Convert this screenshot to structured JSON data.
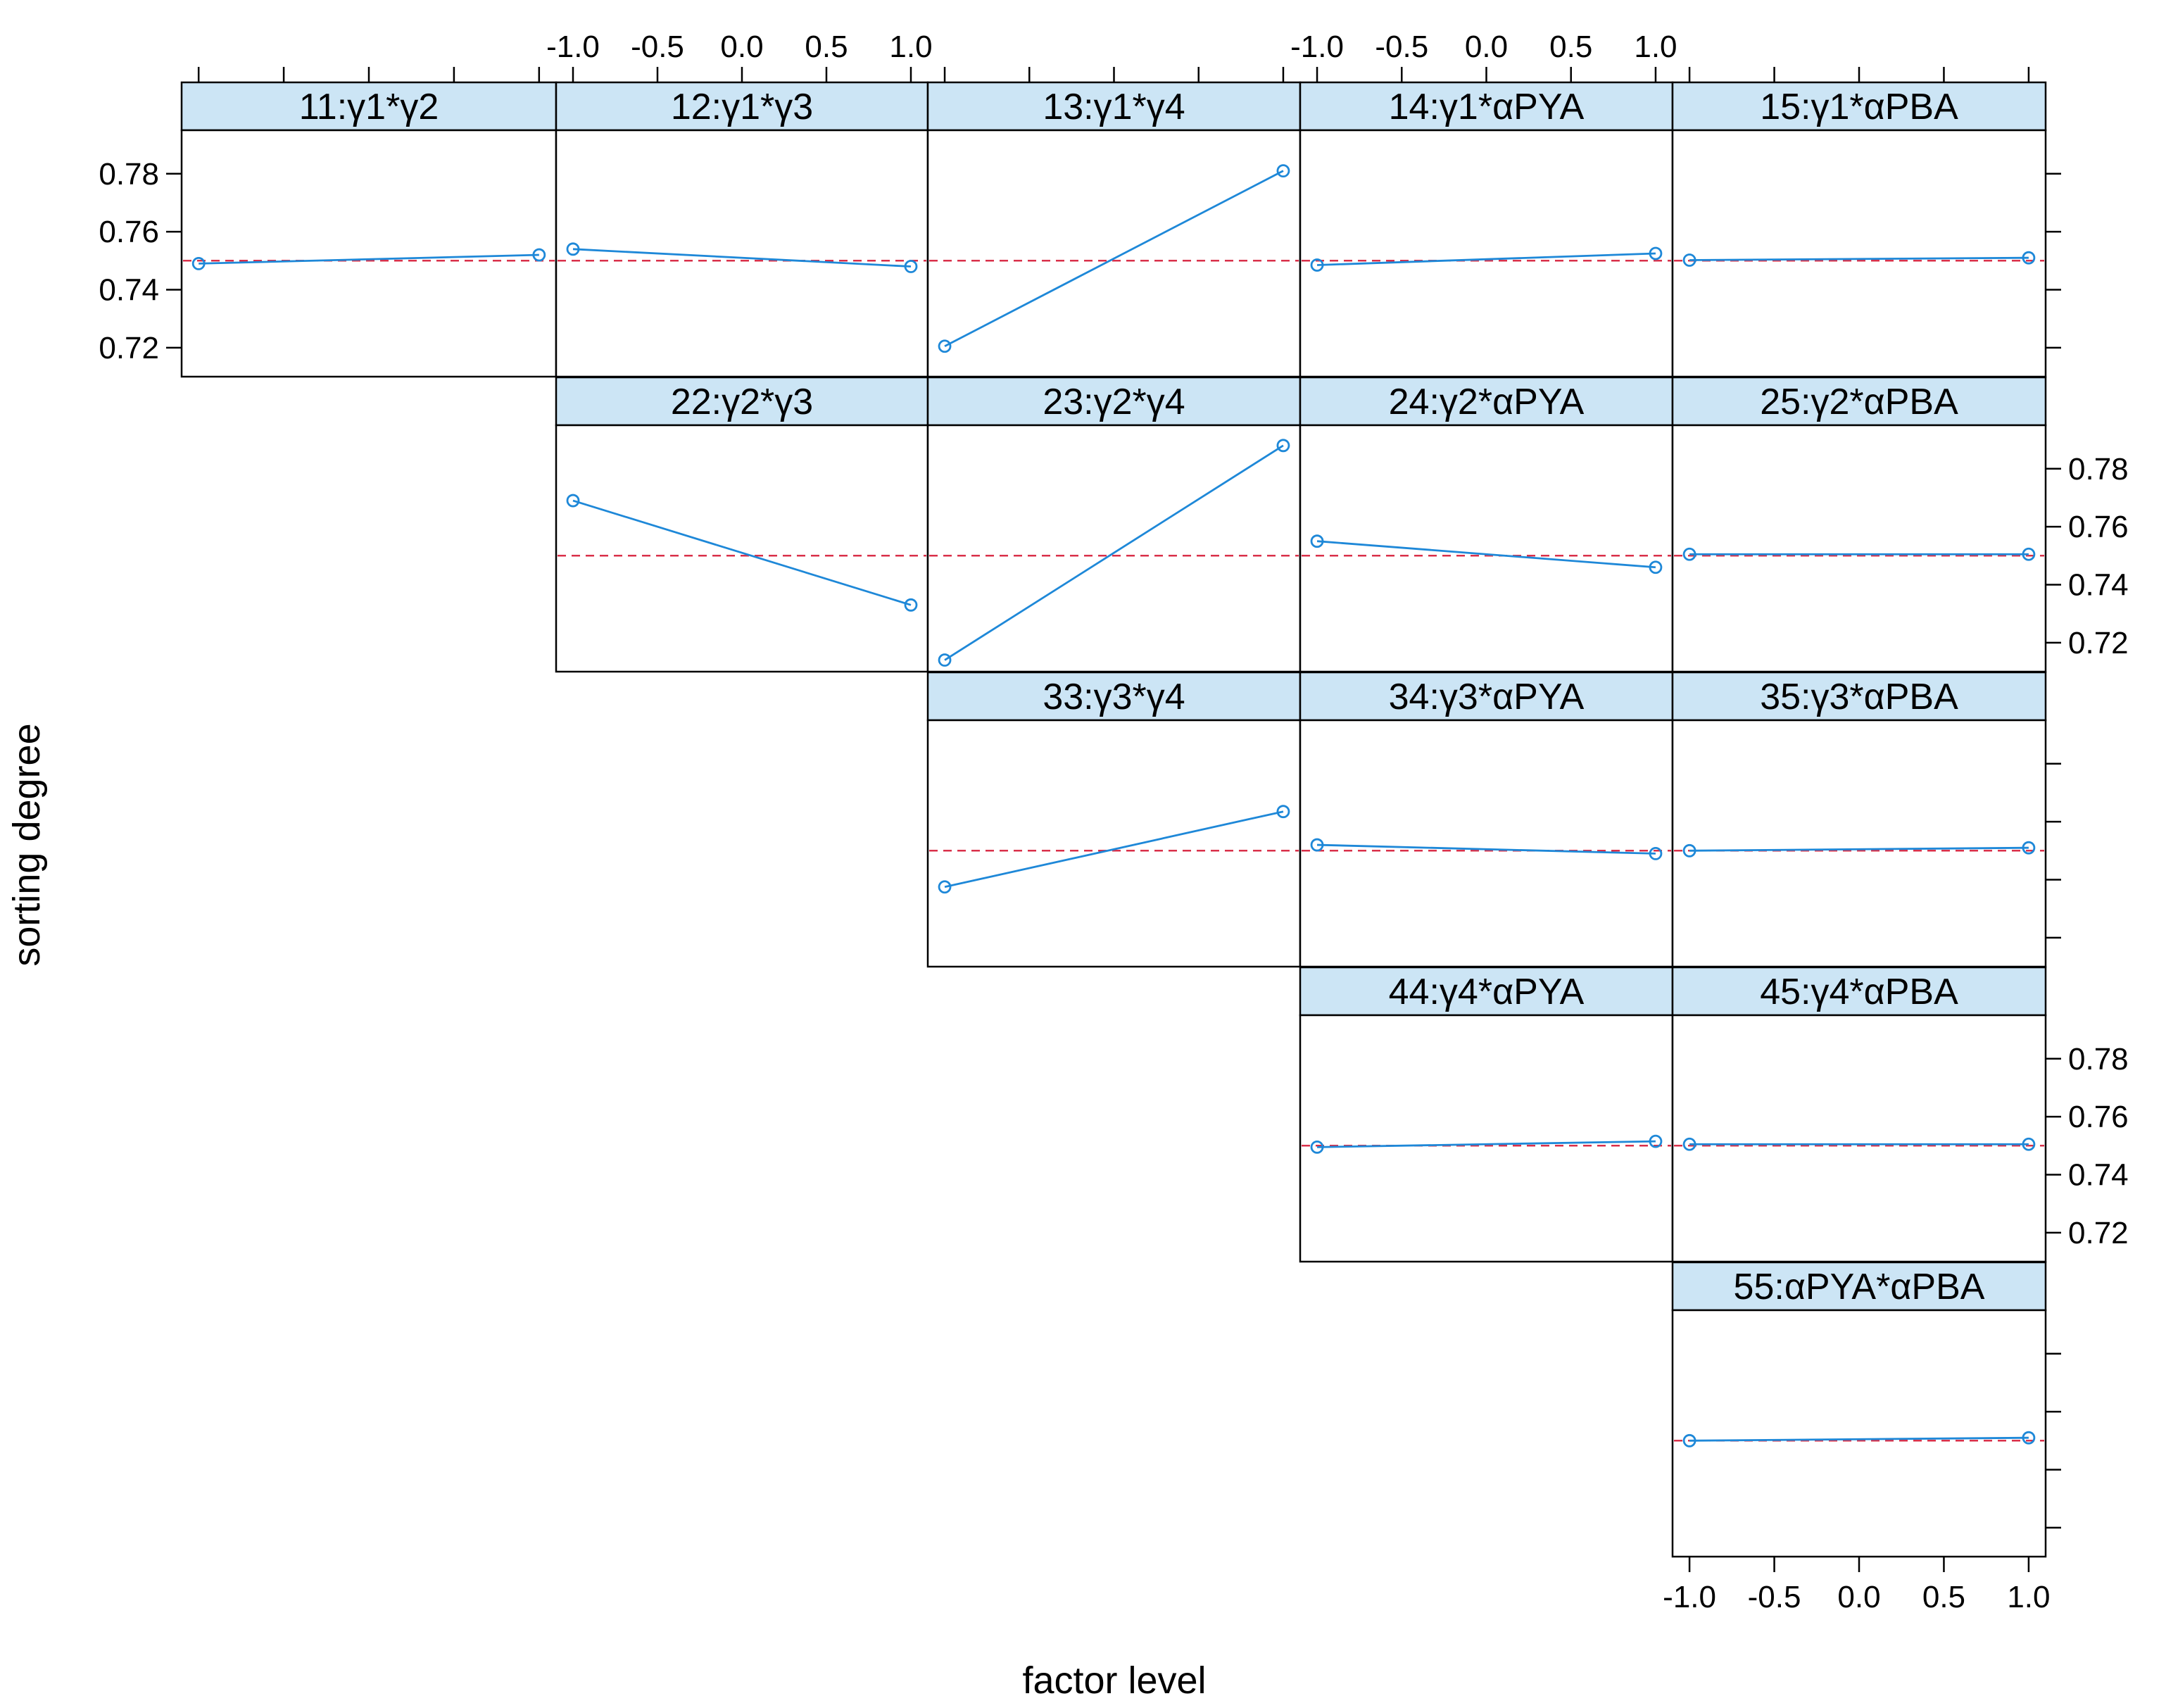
{
  "chart_data": {
    "type": "line",
    "xlabel": "factor level",
    "ylabel": "sorting degree",
    "x_ticks": [
      "-1.0",
      "-0.5",
      "0.0",
      "0.5",
      "1.0"
    ],
    "y_ticks": [
      "0.72",
      "0.74",
      "0.76",
      "0.78"
    ],
    "xlim": [
      -1.1,
      1.1
    ],
    "ylim": [
      0.71,
      0.795
    ],
    "reference_line": 0.75,
    "grid": false,
    "colors": {
      "line": "#1e88d8",
      "reference": "#d9304a",
      "strip": "#cce5f5",
      "frame": "#000000"
    },
    "panels": [
      {
        "label": "11:γ1*γ2",
        "row": 0,
        "col": 0,
        "x": [
          -1,
          1
        ],
        "y": [
          0.749,
          0.752
        ]
      },
      {
        "label": "12:γ1*γ3",
        "row": 0,
        "col": 1,
        "x": [
          -1,
          1
        ],
        "y": [
          0.754,
          0.748
        ]
      },
      {
        "label": "13:γ1*γ4",
        "row": 0,
        "col": 2,
        "x": [
          -1,
          1
        ],
        "y": [
          0.7205,
          0.781
        ]
      },
      {
        "label": "14:γ1*αPYA",
        "row": 0,
        "col": 3,
        "x": [
          -1,
          1
        ],
        "y": [
          0.7485,
          0.7525
        ]
      },
      {
        "label": "15:γ1*αPBA",
        "row": 0,
        "col": 4,
        "x": [
          -1,
          1
        ],
        "y": [
          0.7502,
          0.751
        ]
      },
      {
        "label": "22:γ2*γ3",
        "row": 1,
        "col": 1,
        "x": [
          -1,
          1
        ],
        "y": [
          0.769,
          0.733
        ]
      },
      {
        "label": "23:γ2*γ4",
        "row": 1,
        "col": 2,
        "x": [
          -1,
          1
        ],
        "y": [
          0.714,
          0.788
        ]
      },
      {
        "label": "24:γ2*αPYA",
        "row": 1,
        "col": 3,
        "x": [
          -1,
          1
        ],
        "y": [
          0.755,
          0.746
        ]
      },
      {
        "label": "25:γ2*αPBA",
        "row": 1,
        "col": 4,
        "x": [
          -1,
          1
        ],
        "y": [
          0.7505,
          0.7505
        ]
      },
      {
        "label": "33:γ3*γ4",
        "row": 2,
        "col": 2,
        "x": [
          -1,
          1
        ],
        "y": [
          0.7375,
          0.7635
        ]
      },
      {
        "label": "34:γ3*αPYA",
        "row": 2,
        "col": 3,
        "x": [
          -1,
          1
        ],
        "y": [
          0.752,
          0.749
        ]
      },
      {
        "label": "35:γ3*αPBA",
        "row": 2,
        "col": 4,
        "x": [
          -1,
          1
        ],
        "y": [
          0.75,
          0.751
        ]
      },
      {
        "label": "44:γ4*αPYA",
        "row": 3,
        "col": 3,
        "x": [
          -1,
          1
        ],
        "y": [
          0.7495,
          0.7515
        ]
      },
      {
        "label": "45:γ4*αPBA",
        "row": 3,
        "col": 4,
        "x": [
          -1,
          1
        ],
        "y": [
          0.7505,
          0.7505
        ]
      },
      {
        "label": "55:αPYA*αPBA",
        "row": 4,
        "col": 4,
        "x": [
          -1,
          1
        ],
        "y": [
          0.75,
          0.751
        ]
      }
    ],
    "x_axis_labels_on": [
      {
        "side": "top",
        "col": 1
      },
      {
        "side": "top",
        "col": 3
      },
      {
        "side": "bottom",
        "col": 4
      }
    ],
    "x_axis_ticks_only_on": [
      {
        "side": "top",
        "col": 0
      },
      {
        "side": "top",
        "col": 2
      },
      {
        "side": "top",
        "col": 4
      }
    ],
    "y_axis_labels_on": [
      {
        "side": "left",
        "row": 0
      },
      {
        "side": "right",
        "row": 1
      },
      {
        "side": "right",
        "row": 3
      }
    ],
    "y_axis_ticks_only_on": [
      {
        "side": "right",
        "row": 0
      },
      {
        "side": "right",
        "row": 2
      },
      {
        "side": "right",
        "row": 4
      }
    ]
  }
}
